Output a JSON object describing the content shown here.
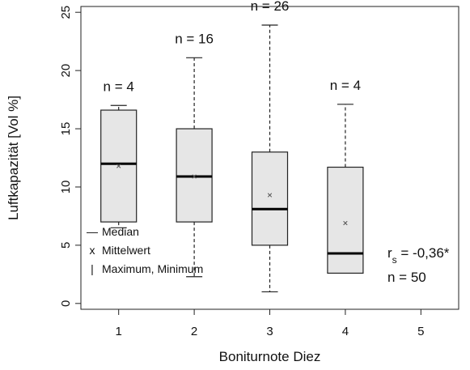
{
  "chart_data": {
    "type": "boxplot",
    "xlabel": "Boniturnote Diez",
    "ylabel": "Luftkapazität [Vol %]",
    "xlim": [
      0.5,
      5.5
    ],
    "ylim": [
      -0.5,
      25.5
    ],
    "x_ticks": [
      1,
      2,
      3,
      4,
      5
    ],
    "y_ticks": [
      0,
      5,
      10,
      15,
      20,
      25
    ],
    "grid": false,
    "legend_position": "bottom-left",
    "boxes": [
      {
        "x": 1,
        "n_label": "n = 4",
        "min": 6.5,
        "q1": 7.0,
        "median": 12.0,
        "q3": 16.6,
        "max": 17.0,
        "mean": 11.8
      },
      {
        "x": 2,
        "n_label": "n = 16",
        "min": 2.3,
        "q1": 7.0,
        "median": 10.9,
        "q3": 15.0,
        "max": 21.1,
        "mean": 10.9
      },
      {
        "x": 3,
        "n_label": "n = 26",
        "min": 1.0,
        "q1": 5.0,
        "median": 8.1,
        "q3": 13.0,
        "max": 23.9,
        "mean": 9.3
      },
      {
        "x": 4,
        "n_label": "n = 4",
        "min": 2.6,
        "q1": 2.6,
        "median": 4.3,
        "q3": 11.7,
        "max": 17.1,
        "mean": 6.9
      }
    ],
    "legend": [
      {
        "symbol": "—",
        "label": "Median"
      },
      {
        "symbol": "x",
        "label": "Mittelwert"
      },
      {
        "symbol": "|",
        "label": "Maximum, Minimum"
      }
    ],
    "annotations": {
      "rs_symbol": "r",
      "rs_subscript": "s",
      "rs_value": " = -0,36*",
      "n_total": "n = 50"
    },
    "colors": {
      "box_fill": "#e6e6e6",
      "box_stroke": "#222222",
      "median": "#000000",
      "mean": "#555555",
      "whisker": "#222222"
    }
  }
}
